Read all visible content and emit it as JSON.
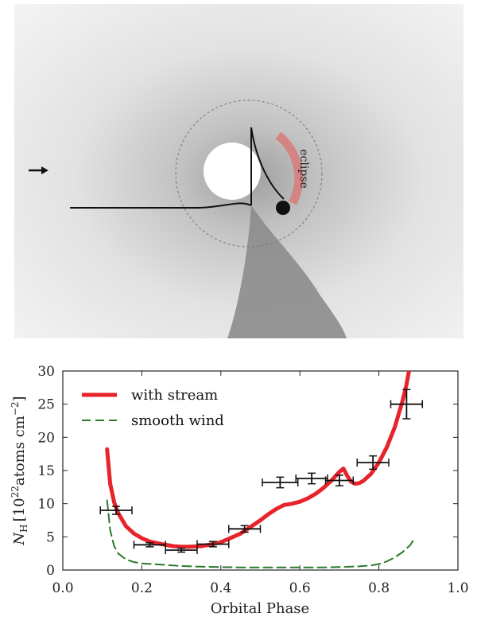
{
  "diagram": {
    "annotation": "eclipse",
    "colors": {
      "background_edge": "#f4f4f4",
      "background_center": "#b4b4b4",
      "stream": "#8a8a8a",
      "eclipse_arc": "#d97a7a",
      "line": "#111111"
    }
  },
  "chart_data": {
    "type": "line",
    "title": "",
    "xlabel": "Orbital Phase",
    "ylabel_main": "N",
    "ylabel_sub": "H",
    "ylabel_units": "[10",
    "ylabel_exp": "22",
    "ylabel_rest": "atoms cm",
    "ylabel_rest_exp": "−2",
    "ylabel_close": "]",
    "xlim": [
      0.0,
      1.0
    ],
    "ylim": [
      0,
      30
    ],
    "x_ticks": [
      0.0,
      0.2,
      0.4,
      0.6,
      0.8,
      1.0
    ],
    "x_tick_labels": [
      "0.0",
      "0.2",
      "0.4",
      "0.6",
      "0.8",
      "1.0"
    ],
    "y_ticks": [
      0,
      5,
      10,
      15,
      20,
      25,
      30
    ],
    "y_tick_labels": [
      "0",
      "5",
      "10",
      "15",
      "20",
      "25",
      "30"
    ],
    "legend_position": "top-left",
    "series": [
      {
        "name": "with stream",
        "style": "solid",
        "color": "#e8242b",
        "x": [
          0.112,
          0.12,
          0.13,
          0.14,
          0.16,
          0.18,
          0.2,
          0.22,
          0.25,
          0.28,
          0.3,
          0.32,
          0.35,
          0.38,
          0.4,
          0.42,
          0.45,
          0.48,
          0.5,
          0.52,
          0.54,
          0.56,
          0.58,
          0.6,
          0.62,
          0.64,
          0.66,
          0.68,
          0.7,
          0.71,
          0.72,
          0.73,
          0.74,
          0.75,
          0.76,
          0.78,
          0.8,
          0.82,
          0.84,
          0.86,
          0.87,
          0.876
        ],
        "y": [
          18.2,
          13.0,
          10.2,
          8.6,
          6.6,
          5.5,
          4.8,
          4.3,
          3.9,
          3.6,
          3.5,
          3.5,
          3.6,
          3.9,
          4.2,
          4.7,
          5.5,
          6.7,
          7.5,
          8.4,
          9.2,
          9.8,
          10.0,
          10.3,
          10.8,
          11.5,
          12.4,
          13.5,
          14.8,
          15.3,
          14.2,
          13.3,
          13.0,
          13.1,
          13.4,
          14.5,
          16.2,
          18.5,
          21.5,
          25.5,
          28.0,
          30.0
        ]
      },
      {
        "name": "smooth wind",
        "style": "dashed",
        "color": "#2a7a2a",
        "x": [
          0.112,
          0.12,
          0.13,
          0.14,
          0.16,
          0.18,
          0.2,
          0.25,
          0.3,
          0.35,
          0.4,
          0.45,
          0.5,
          0.55,
          0.6,
          0.65,
          0.7,
          0.75,
          0.78,
          0.8,
          0.82,
          0.84,
          0.86,
          0.88,
          0.89
        ],
        "y": [
          10.5,
          6.0,
          3.6,
          2.5,
          1.6,
          1.2,
          1.0,
          0.8,
          0.6,
          0.5,
          0.45,
          0.4,
          0.4,
          0.4,
          0.4,
          0.4,
          0.45,
          0.55,
          0.7,
          0.9,
          1.3,
          1.9,
          2.7,
          3.8,
          4.8
        ]
      }
    ],
    "data_points": {
      "name": "observations",
      "color": "#111111",
      "points": [
        {
          "x": 0.135,
          "y": 9.0,
          "xerr": 0.04,
          "yerr": 0.6
        },
        {
          "x": 0.22,
          "y": 3.8,
          "xerr": 0.04,
          "yerr": 0.3
        },
        {
          "x": 0.3,
          "y": 3.0,
          "xerr": 0.04,
          "yerr": 0.3
        },
        {
          "x": 0.38,
          "y": 3.9,
          "xerr": 0.04,
          "yerr": 0.4
        },
        {
          "x": 0.46,
          "y": 6.2,
          "xerr": 0.04,
          "yerr": 0.5
        },
        {
          "x": 0.55,
          "y": 13.2,
          "xerr": 0.045,
          "yerr": 0.8
        },
        {
          "x": 0.63,
          "y": 13.8,
          "xerr": 0.04,
          "yerr": 0.8
        },
        {
          "x": 0.7,
          "y": 13.5,
          "xerr": 0.035,
          "yerr": 0.8
        },
        {
          "x": 0.785,
          "y": 16.2,
          "xerr": 0.04,
          "yerr": 1.0
        },
        {
          "x": 0.87,
          "y": 25.0,
          "xerr": 0.04,
          "yerr": 2.2
        }
      ]
    }
  }
}
